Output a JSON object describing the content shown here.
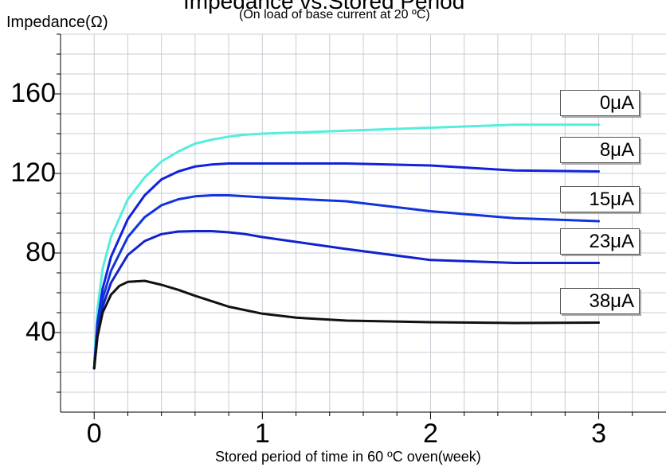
{
  "title": "Impedance vs.Stored Period",
  "subtitle": "(On load of base current at 20 ºC)",
  "ylabel": "Impedance(Ω)",
  "xlabel": "Stored period of time in 60 ºC  oven(week)",
  "chart_data": {
    "type": "line",
    "title": "Impedance vs.Stored Period",
    "subtitle": "(On load of base current at 20 ºC)",
    "xlabel": "Stored period of time in 60 ºC  oven(week)",
    "ylabel": "Impedance(Ω)",
    "xlim": [
      -0.2,
      3.4
    ],
    "ylim": [
      0,
      190
    ],
    "xticks": [
      "0",
      "1",
      "2",
      "3"
    ],
    "yticks": [
      "40",
      "80",
      "120",
      "160"
    ],
    "grid": true,
    "legend": "right, labels at line ends",
    "series": [
      {
        "name": "0μA",
        "color": "#55eedd",
        "x": [
          0,
          0.02,
          0.05,
          0.1,
          0.2,
          0.3,
          0.4,
          0.5,
          0.6,
          0.7,
          0.8,
          0.9,
          1.0,
          1.5,
          2.0,
          2.5,
          3.0
        ],
        "y": [
          25,
          52,
          72,
          88,
          107,
          118,
          126,
          131,
          135,
          137,
          138.5,
          139.5,
          140,
          141.5,
          143,
          144.5,
          144.5
        ]
      },
      {
        "name": "8μA",
        "color": "#1122dd",
        "x": [
          0,
          0.02,
          0.05,
          0.1,
          0.2,
          0.3,
          0.4,
          0.5,
          0.6,
          0.7,
          0.8,
          0.9,
          1.0,
          1.5,
          2.0,
          2.5,
          3.0
        ],
        "y": [
          22,
          45,
          62,
          78,
          97,
          109,
          117,
          121,
          123.5,
          124.5,
          125,
          125,
          125,
          125,
          124,
          121.5,
          121
        ]
      },
      {
        "name": "15μA",
        "color": "#1133dd",
        "x": [
          0,
          0.02,
          0.05,
          0.1,
          0.2,
          0.3,
          0.4,
          0.5,
          0.6,
          0.7,
          0.8,
          0.9,
          1.0,
          1.5,
          2.0,
          2.5,
          3.0
        ],
        "y": [
          22,
          42,
          57,
          71,
          88,
          98,
          104,
          107,
          108.5,
          109,
          109,
          108.5,
          108,
          106,
          101,
          97.5,
          96
        ]
      },
      {
        "name": "23μA",
        "color": "#1122cc",
        "x": [
          0,
          0.02,
          0.05,
          0.1,
          0.2,
          0.3,
          0.4,
          0.5,
          0.6,
          0.7,
          0.8,
          0.9,
          1.0,
          1.5,
          2.0,
          2.5,
          3.0
        ],
        "y": [
          22,
          40,
          53,
          65,
          79,
          86,
          89.5,
          90.8,
          91,
          91,
          90.4,
          89.5,
          88,
          82,
          76.5,
          75,
          75
        ]
      },
      {
        "name": "38μA",
        "color": "#111111",
        "x": [
          0,
          0.02,
          0.05,
          0.1,
          0.15,
          0.2,
          0.3,
          0.4,
          0.5,
          0.6,
          0.8,
          1.0,
          1.2,
          1.5,
          2.0,
          2.5,
          3.0
        ],
        "y": [
          22,
          38,
          50,
          59,
          63.5,
          65.5,
          66,
          64,
          61.5,
          58.5,
          53,
          49.5,
          47.5,
          46,
          45.2,
          44.8,
          45
        ]
      }
    ]
  }
}
